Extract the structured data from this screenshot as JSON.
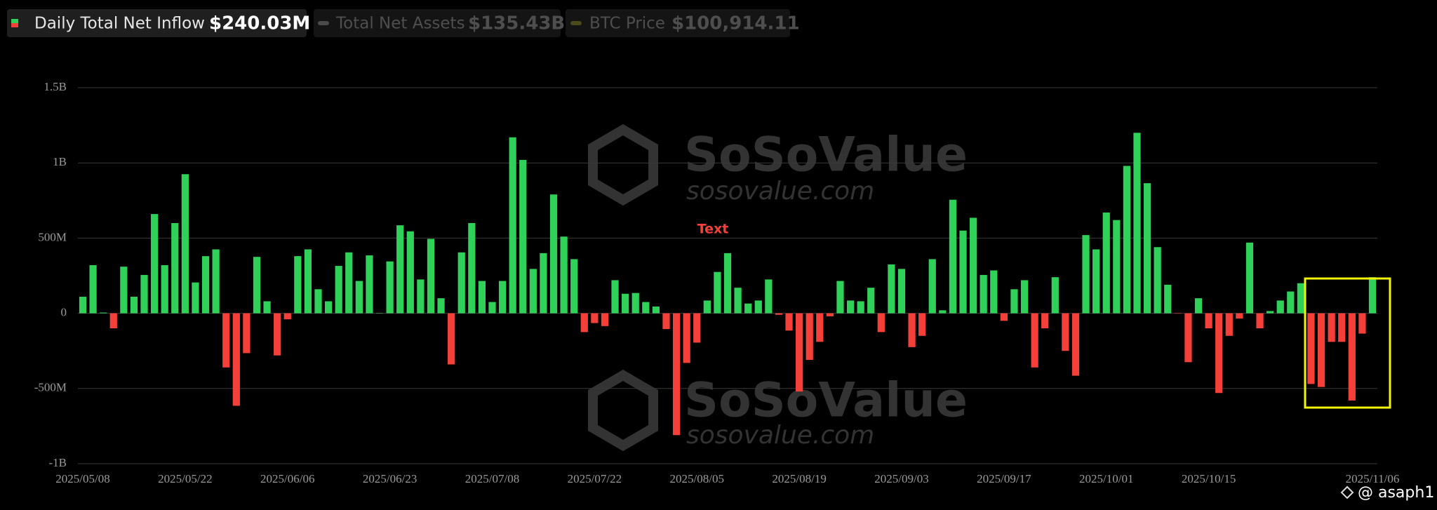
{
  "chart_data": {
    "type": "bar",
    "legend": [
      {
        "label": "Daily Total Net Inflow",
        "value": "$240.03M"
      },
      {
        "label": "Total Net Assets",
        "value": "$135.43B"
      },
      {
        "label": "BTC Price",
        "value": "$100,914.11"
      }
    ],
    "watermark": {
      "brand": "SoSoValue",
      "site": "sosovalue.com"
    },
    "annotation": "Text",
    "credit": "@ asaph1",
    "categories": [
      "2025/05/08",
      null,
      null,
      null,
      null,
      null,
      null,
      null,
      null,
      null,
      "2025/05/22",
      null,
      null,
      null,
      null,
      null,
      null,
      null,
      null,
      null,
      "2025/06/06",
      null,
      null,
      null,
      null,
      null,
      null,
      null,
      null,
      null,
      "2025/06/23",
      null,
      null,
      null,
      null,
      null,
      null,
      null,
      null,
      null,
      "2025/07/08",
      null,
      null,
      null,
      null,
      null,
      null,
      null,
      null,
      null,
      "2025/07/22",
      null,
      null,
      null,
      null,
      null,
      null,
      null,
      null,
      null,
      "2025/08/05",
      null,
      null,
      null,
      null,
      null,
      null,
      null,
      null,
      null,
      "2025/08/19",
      null,
      null,
      null,
      null,
      null,
      null,
      null,
      null,
      null,
      "2025/09/03",
      null,
      null,
      null,
      null,
      null,
      null,
      null,
      null,
      null,
      "2025/09/17",
      null,
      null,
      null,
      null,
      null,
      null,
      null,
      null,
      null,
      "2025/10/01",
      null,
      null,
      null,
      null,
      null,
      null,
      null,
      null,
      null,
      "2025/10/15",
      null,
      null,
      null,
      null,
      null,
      null,
      null,
      null,
      null,
      null,
      null,
      null,
      null,
      null,
      null,
      "2025/11/06"
    ],
    "series": [
      {
        "name": "Daily Total Net Inflow",
        "positive_color": "#2fd159",
        "negative_color": "#f5403a",
        "values": [
          110,
          320,
          5,
          -100,
          310,
          110,
          255,
          660,
          320,
          600,
          925,
          205,
          380,
          425,
          -360,
          -615,
          -265,
          375,
          80,
          -280,
          -40,
          380,
          425,
          160,
          80,
          315,
          405,
          215,
          385,
          2,
          345,
          585,
          545,
          225,
          495,
          100,
          -340,
          405,
          600,
          215,
          75,
          215,
          1170,
          1020,
          295,
          400,
          790,
          510,
          360,
          -125,
          -65,
          -85,
          220,
          130,
          135,
          75,
          45,
          -105,
          -810,
          -330,
          -195,
          85,
          275,
          400,
          170,
          65,
          85,
          225,
          -10,
          -115,
          -520,
          -310,
          -190,
          -20,
          215,
          85,
          80,
          170,
          -125,
          325,
          295,
          -225,
          -150,
          360,
          20,
          755,
          550,
          635,
          255,
          285,
          -50,
          160,
          220,
          -360,
          -100,
          240,
          -250,
          -415,
          520,
          425,
          670,
          620,
          980,
          1200,
          865,
          440,
          190,
          -2,
          -325,
          100,
          -100,
          -530,
          -150,
          -35,
          470,
          -100,
          15,
          85,
          145,
          200,
          -470,
          -490,
          -190,
          -190,
          -580,
          -135,
          240.03
        ]
      }
    ],
    "ylim": [
      -1000,
      1500
    ],
    "yticks": [
      {
        "value": 1500,
        "label": "1.5B"
      },
      {
        "value": 1000,
        "label": "1B"
      },
      {
        "value": 500,
        "label": "500M"
      },
      0,
      {
        "value": -500,
        "label": "-500M"
      },
      {
        "value": -1000,
        "label": "-1B"
      }
    ],
    "grid": true
  }
}
